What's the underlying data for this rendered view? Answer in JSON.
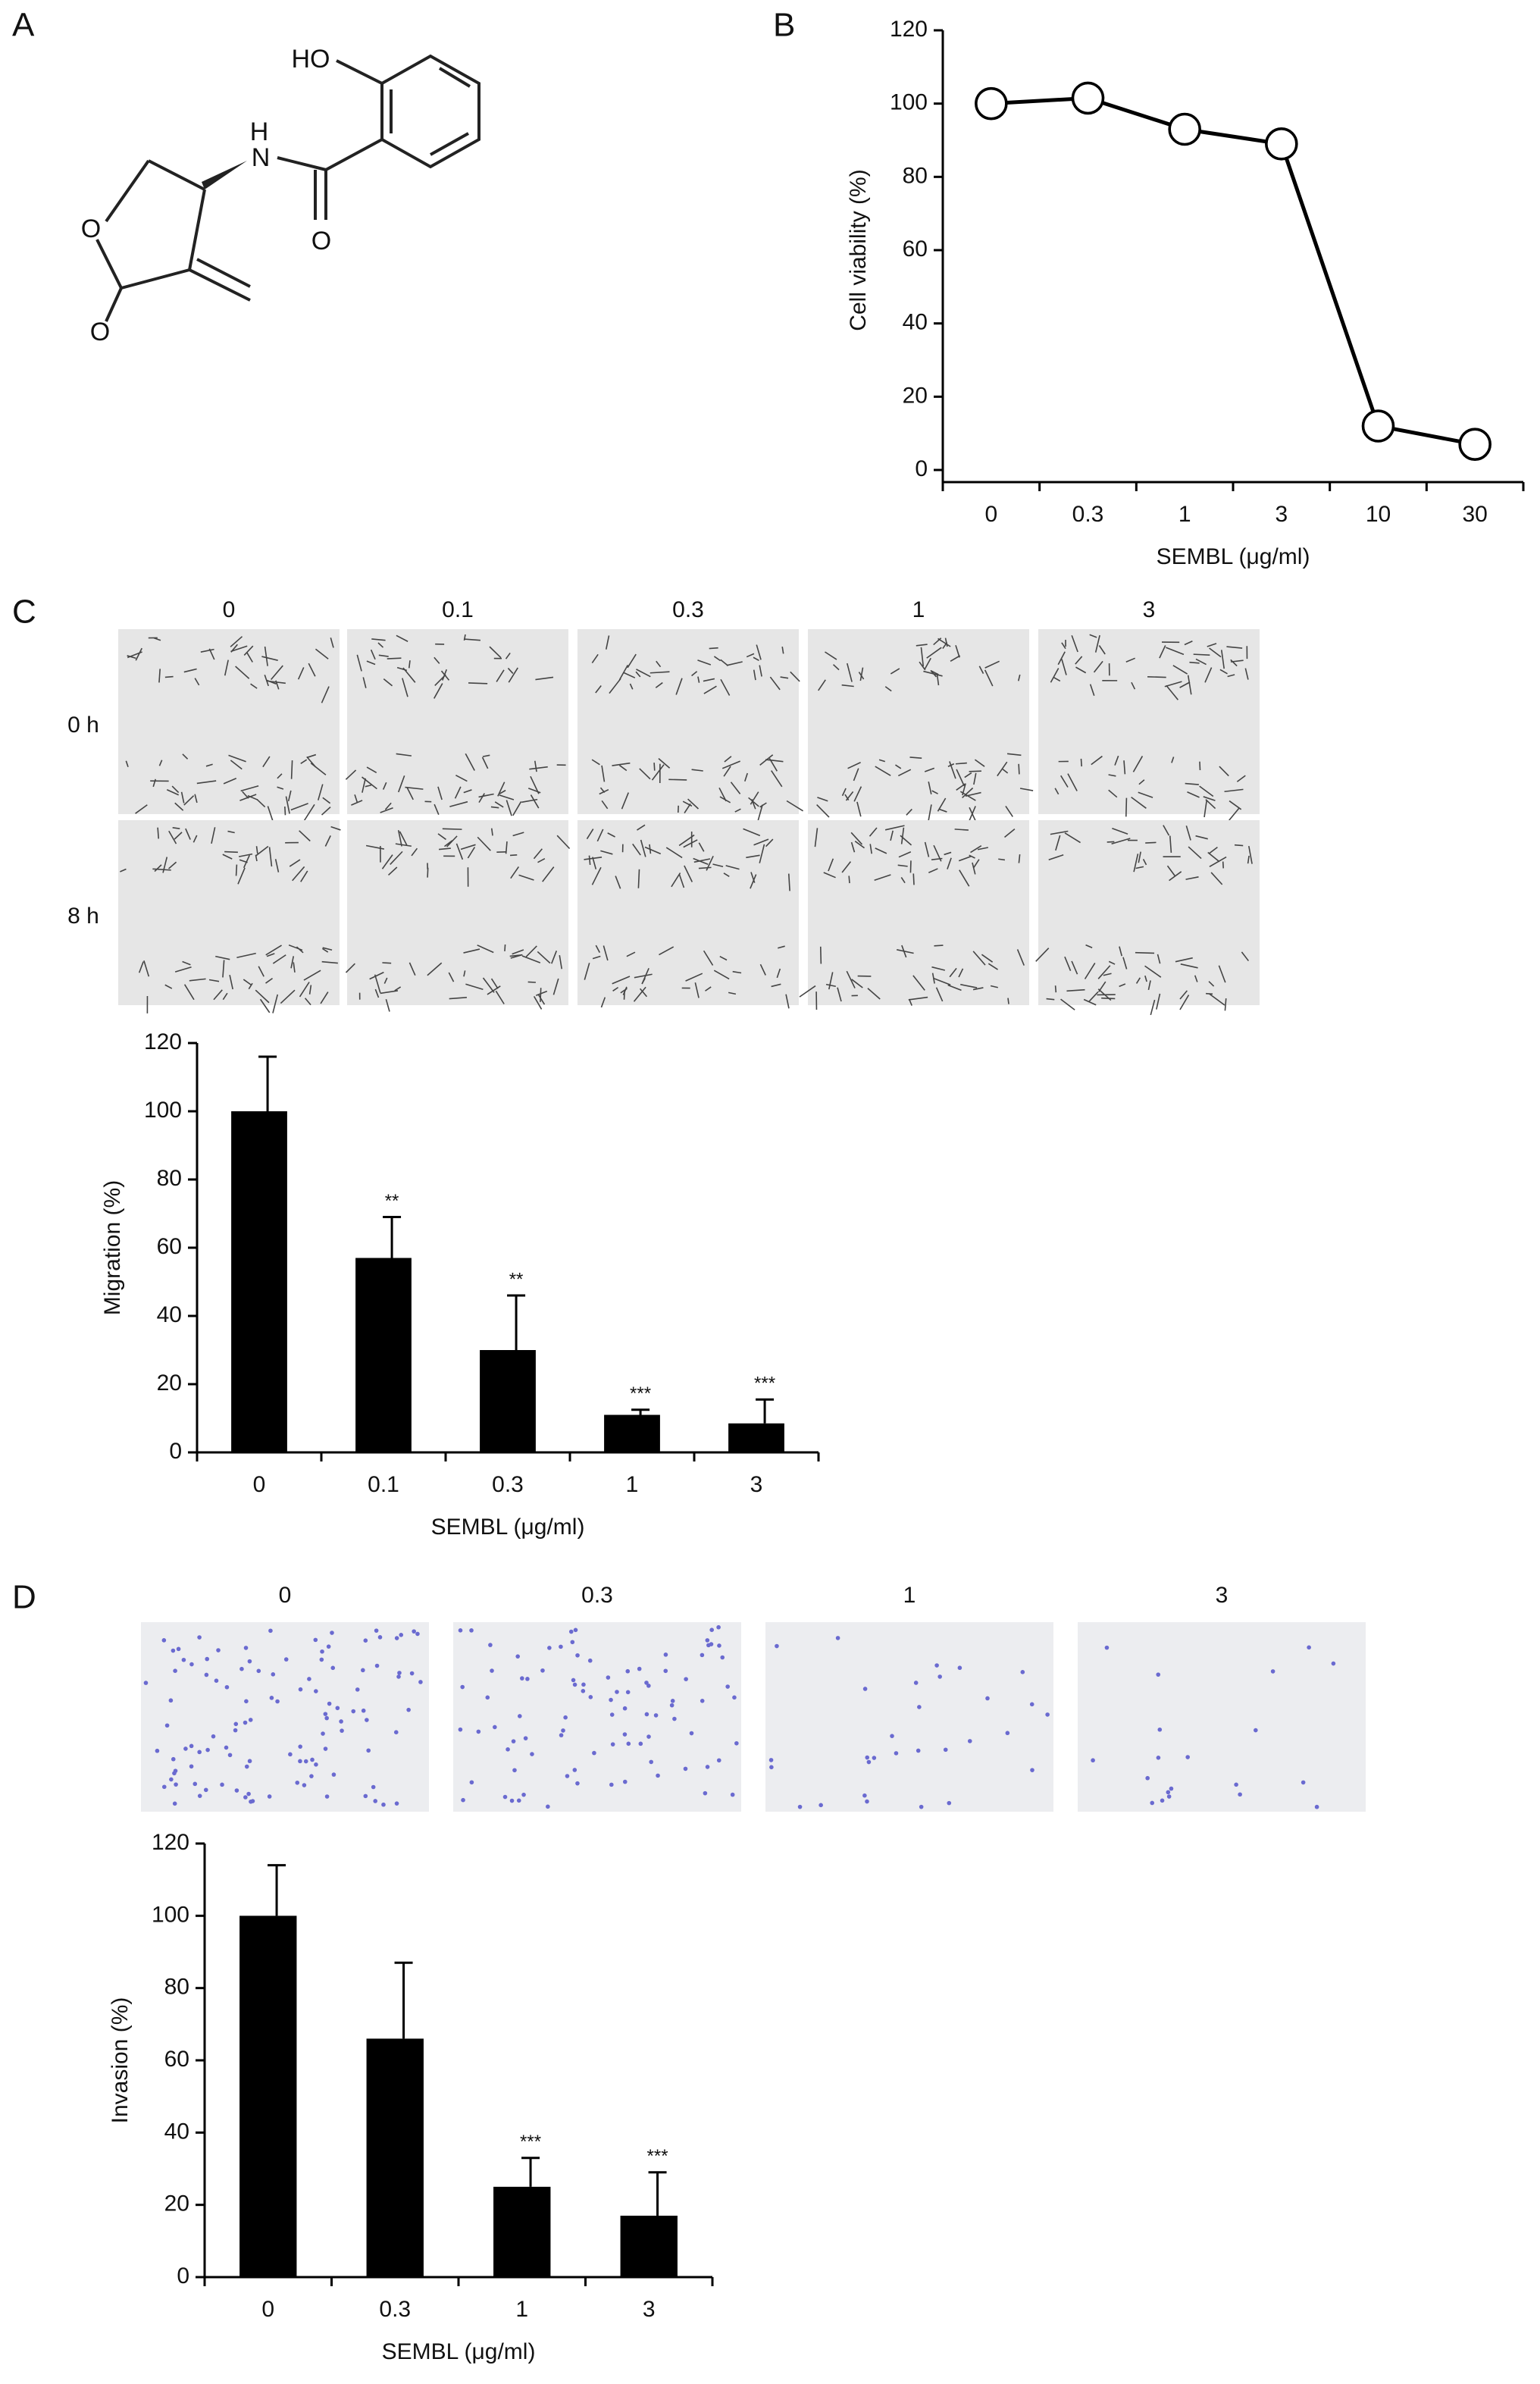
{
  "panel_labels": [
    "A",
    "B",
    "C",
    "D"
  ],
  "structure": {
    "atoms": [
      "HO",
      "H",
      "N",
      "O",
      "O",
      "O"
    ]
  },
  "migration_images": {
    "columns": [
      "0",
      "0.1",
      "0.3",
      "1",
      "3"
    ],
    "rows": [
      "0 h",
      "8 h"
    ]
  },
  "invasion_images": {
    "columns": [
      "0",
      "0.3",
      "1",
      "3"
    ]
  },
  "chart_data": [
    {
      "type": "line",
      "categories": [
        "0",
        "0.3",
        "1",
        "3",
        "10",
        "30"
      ],
      "values": [
        100,
        101.5,
        93,
        89,
        12,
        7
      ],
      "color": "#000000",
      "xlabel": "SEMBL (μg/ml)",
      "ylabel": "Cell viability (%)",
      "ylim": [
        0,
        120
      ],
      "yticks": [
        0,
        20,
        40,
        60,
        80,
        100,
        120
      ]
    },
    {
      "type": "bar",
      "categories": [
        "0",
        "0.1",
        "0.3",
        "1",
        "3"
      ],
      "values": [
        100,
        57,
        30,
        11,
        8.5
      ],
      "errors": [
        16,
        12,
        16,
        1.5,
        7
      ],
      "annotations": [
        null,
        "**",
        "**",
        "***",
        "***"
      ],
      "color": "#000000",
      "xlabel": "SEMBL (μg/ml)",
      "ylabel": "Migration (%)",
      "ylim": [
        0,
        120
      ],
      "yticks": [
        0,
        20,
        40,
        60,
        80,
        100,
        120
      ]
    },
    {
      "type": "bar",
      "categories": [
        "0",
        "0.3",
        "1",
        "3"
      ],
      "values": [
        100,
        66,
        25,
        17
      ],
      "errors": [
        14,
        21,
        8,
        12
      ],
      "annotations": [
        null,
        null,
        "***",
        "***"
      ],
      "color": "#000000",
      "xlabel": "SEMBL (μg/ml)",
      "ylabel": "Invasion (%)",
      "ylim": [
        0,
        120
      ],
      "yticks": [
        0,
        20,
        40,
        60,
        80,
        100,
        120
      ]
    }
  ]
}
